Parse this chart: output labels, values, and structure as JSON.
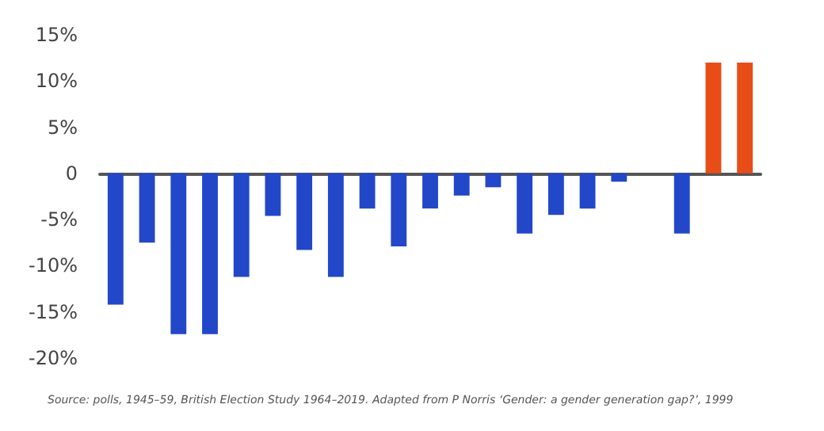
{
  "chart_data": {
    "type": "bar",
    "categories": [
      null,
      null,
      null,
      null,
      null,
      null,
      null,
      null,
      null,
      null,
      null,
      null,
      null,
      null,
      null,
      null,
      null,
      null,
      null,
      null,
      null
    ],
    "values": [
      -14.2,
      -7.5,
      -17.4,
      -17.4,
      -11.2,
      -4.6,
      -8.3,
      -11.2,
      -3.8,
      -7.9,
      -3.8,
      -2.4,
      -1.5,
      -6.5,
      -4.5,
      -3.8,
      -0.9,
      null,
      -6.5,
      12,
      12
    ],
    "colors": [
      "#2347c9",
      "#2347c9",
      "#2347c9",
      "#2347c9",
      "#2347c9",
      "#2347c9",
      "#2347c9",
      "#2347c9",
      "#2347c9",
      "#2347c9",
      "#2347c9",
      "#2347c9",
      "#2347c9",
      "#2347c9",
      "#2347c9",
      "#2347c9",
      "#2347c9",
      "#2347c9",
      "#2347c9",
      "#e84d17",
      "#e84d17"
    ],
    "ylim": [
      -20,
      15
    ],
    "yticks": [
      {
        "value": -20,
        "label": "-20%"
      },
      {
        "value": -15,
        "label": "-15%"
      },
      {
        "value": -10,
        "label": "-10%"
      },
      {
        "value": -5,
        "label": "-5%"
      },
      {
        "value": 0,
        "label": "0"
      },
      {
        "value": 5,
        "label": "5%"
      },
      {
        "value": 10,
        "label": "10%"
      },
      {
        "value": 15,
        "label": "15%"
      }
    ],
    "annotations": [
      "Source: polls, 1945–59, British Election Study 1964–2019. Adapted from P Norris ‘Gender: a gender generation gap?’, 1999"
    ]
  }
}
